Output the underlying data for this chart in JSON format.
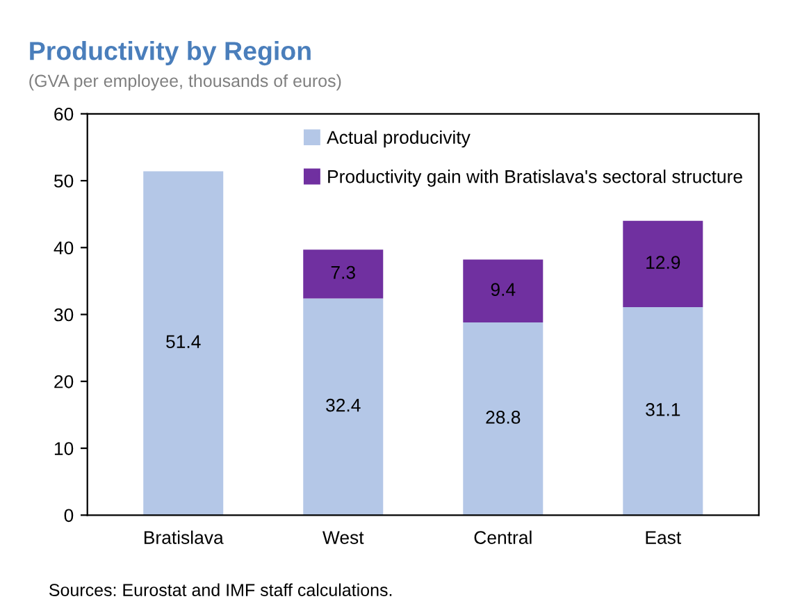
{
  "chart_data": {
    "type": "bar",
    "title": "Productivity by Region",
    "subtitle": "(GVA per employee, thousands of euros)",
    "categories": [
      "Bratislava",
      "West",
      "Central",
      "East"
    ],
    "stacked": true,
    "series": [
      {
        "name": "Actual producivity",
        "color": "#b4c7e7",
        "values": [
          51.4,
          32.4,
          28.8,
          31.1
        ]
      },
      {
        "name": "Productivity gain with Bratislava's sectoral structure",
        "color": "#7030a0",
        "values": [
          null,
          7.3,
          9.4,
          12.9
        ]
      }
    ],
    "ylim": [
      0,
      60
    ],
    "yticks": [
      0,
      10,
      20,
      30,
      40,
      50,
      60
    ],
    "data_labels": true,
    "legend": "top",
    "grid": false,
    "annotations": [
      "Sources: Eurostat and IMF staff calculations."
    ]
  }
}
